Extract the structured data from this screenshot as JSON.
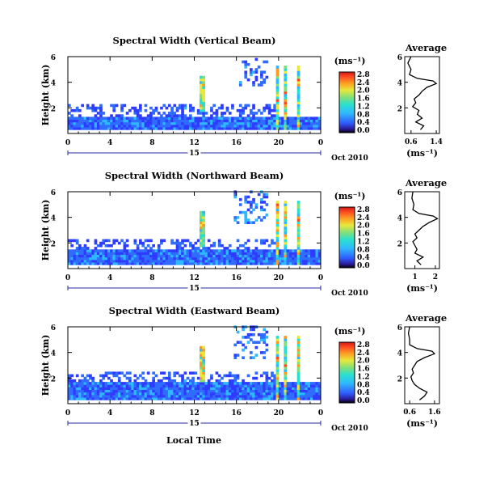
{
  "xlabel": "Local Time",
  "chart_data": [
    {
      "type": "heatmap",
      "title": "Spectral Width (Vertical Beam)",
      "ylabel": "Height (km)",
      "yticks": [
        "6",
        "4",
        "2"
      ],
      "xticks": [
        "0",
        "4",
        "8",
        "12",
        "16",
        "20",
        "0"
      ],
      "date_day": "15",
      "date_label": "Oct 2010",
      "xlim": [
        0,
        24
      ],
      "ylim": [
        0,
        6
      ],
      "colorbar": {
        "unit": "(ms⁻¹)",
        "tick_labels": [
          "2.8",
          "2.4",
          "2.0",
          "1.6",
          "1.2",
          "0.8",
          "0.4",
          "0.0"
        ]
      },
      "average_profile": {
        "title": "Average",
        "xticks": [
          "0.6",
          "1.4"
        ],
        "xlim": [
          0.4,
          1.5
        ],
        "yticks": [
          "6",
          "4",
          "2"
        ],
        "xlabel": "(ms⁻¹)",
        "height_km": [
          0.3,
          0.6,
          0.9,
          1.2,
          1.5,
          1.8,
          2.1,
          2.4,
          2.7,
          3.0,
          3.3,
          3.6,
          3.9,
          4.1,
          4.3,
          4.6,
          5.0,
          5.5,
          6.0
        ],
        "value": [
          0.9,
          1.0,
          0.75,
          0.95,
          0.8,
          0.85,
          0.65,
          0.75,
          0.7,
          0.85,
          0.95,
          1.1,
          1.4,
          1.3,
          0.8,
          0.55,
          0.6,
          0.5,
          0.6
        ]
      }
    },
    {
      "type": "heatmap",
      "title": "Spectral Width (Northward Beam)",
      "ylabel": "Height (km)",
      "yticks": [
        "6",
        "4",
        "2"
      ],
      "xticks": [
        "0",
        "4",
        "8",
        "12",
        "16",
        "20",
        "0"
      ],
      "date_day": "15",
      "date_label": "Oct 2010",
      "xlim": [
        0,
        24
      ],
      "ylim": [
        0,
        6
      ],
      "colorbar": {
        "unit": "(ms⁻¹)",
        "tick_labels": [
          "2.8",
          "2.4",
          "2.0",
          "1.6",
          "1.2",
          "0.8",
          "0.4",
          "0.0"
        ]
      },
      "average_profile": {
        "title": "Average",
        "xticks": [
          "1",
          "2"
        ],
        "xlim": [
          0.5,
          2.2
        ],
        "yticks": [
          "6",
          "4",
          "2"
        ],
        "xlabel": "(ms⁻¹)",
        "height_km": [
          0.3,
          0.6,
          0.9,
          1.2,
          1.5,
          1.8,
          2.1,
          2.4,
          2.7,
          3.0,
          3.3,
          3.6,
          3.9,
          4.1,
          4.3,
          4.6,
          5.0,
          5.5,
          6.0
        ],
        "value": [
          1.3,
          1.1,
          1.4,
          1.0,
          1.1,
          1.0,
          0.9,
          1.1,
          1.0,
          1.2,
          1.4,
          1.7,
          2.1,
          1.9,
          1.2,
          0.9,
          0.95,
          0.85,
          0.9
        ]
      }
    },
    {
      "type": "heatmap",
      "title": "Spectral Width (Eastward Beam)",
      "ylabel": "Height (km)",
      "yticks": [
        "6",
        "4",
        "2"
      ],
      "xticks": [
        "0",
        "4",
        "8",
        "12",
        "16",
        "20",
        "0"
      ],
      "date_day": "15",
      "date_label": "Oct 2010",
      "xlim": [
        0,
        24
      ],
      "ylim": [
        0,
        6
      ],
      "colorbar": {
        "unit": "(ms⁻¹)",
        "tick_labels": [
          "2.8",
          "2.4",
          "2.0",
          "1.6",
          "1.2",
          "0.8",
          "0.4",
          "0.0"
        ]
      },
      "average_profile": {
        "title": "Average",
        "xticks": [
          "0.6",
          "1.6"
        ],
        "xlim": [
          0.4,
          1.8
        ],
        "yticks": [
          "6",
          "4",
          "2"
        ],
        "xlabel": "(ms⁻¹)",
        "height_km": [
          0.3,
          0.6,
          0.9,
          1.2,
          1.5,
          1.8,
          2.1,
          2.4,
          2.7,
          3.0,
          3.3,
          3.6,
          3.9,
          4.1,
          4.3,
          4.6,
          5.0,
          5.5,
          6.0
        ],
        "value": [
          1.0,
          1.2,
          1.3,
          1.0,
          0.8,
          0.7,
          0.65,
          0.75,
          0.7,
          0.8,
          0.9,
          1.2,
          1.6,
          1.5,
          0.9,
          0.6,
          0.6,
          0.55,
          0.6
        ]
      }
    }
  ]
}
